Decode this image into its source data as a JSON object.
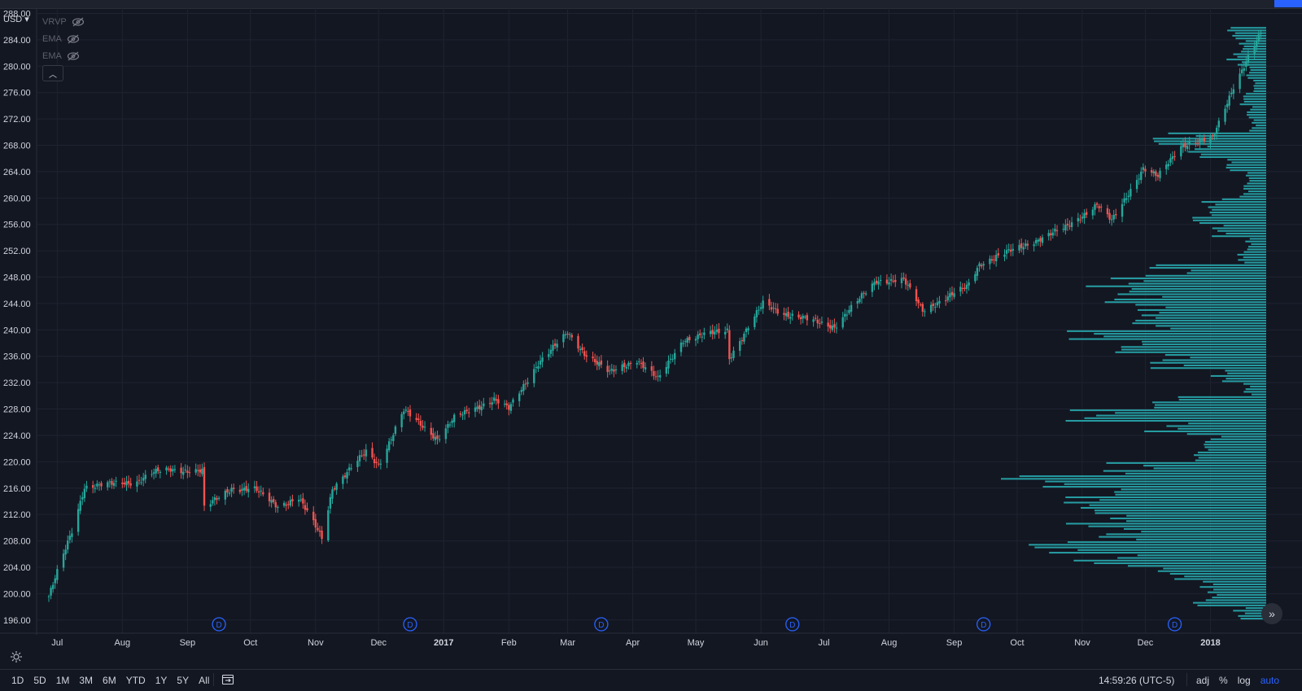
{
  "currency": "USD",
  "legend": [
    "VRVP",
    "EMA",
    "EMA"
  ],
  "bottom_bar": {
    "ranges": [
      "1D",
      "5D",
      "1M",
      "3M",
      "6M",
      "YTD",
      "1Y",
      "5Y",
      "All"
    ],
    "clock": "14:59:26 (UTC-5)",
    "options": [
      "adj",
      "%",
      "log",
      "auto"
    ],
    "active_option": "auto"
  },
  "colors": {
    "background": "#131722",
    "up": "#26a69a",
    "down": "#ef5350",
    "volume_profile": "#26a3a9",
    "dividend_marker": "#2962ff"
  },
  "chart_data": {
    "type": "candlestick",
    "title": "",
    "price_axis": {
      "ylim": [
        194.0,
        288.8
      ],
      "ticks": [
        "196.00",
        "200.00",
        "204.00",
        "208.00",
        "212.00",
        "216.00",
        "220.00",
        "224.00",
        "228.00",
        "232.00",
        "236.00",
        "240.00",
        "244.00",
        "248.00",
        "252.00",
        "256.00",
        "260.00",
        "264.00",
        "268.00",
        "272.00",
        "276.00",
        "280.00",
        "284.00",
        "288.00"
      ]
    },
    "time_axis": {
      "range": [
        "2016-06-27",
        "2018-01-26"
      ],
      "ticks": [
        {
          "label": "Jul",
          "date": "2016-07-01"
        },
        {
          "label": "Aug",
          "date": "2016-08-01"
        },
        {
          "label": "Sep",
          "date": "2016-09-01"
        },
        {
          "label": "Oct",
          "date": "2016-10-01"
        },
        {
          "label": "Nov",
          "date": "2016-11-01"
        },
        {
          "label": "Dec",
          "date": "2016-12-01"
        },
        {
          "label": "2017",
          "date": "2017-01-01",
          "bold": true
        },
        {
          "label": "Feb",
          "date": "2017-02-01"
        },
        {
          "label": "Mar",
          "date": "2017-03-01"
        },
        {
          "label": "Apr",
          "date": "2017-04-01"
        },
        {
          "label": "May",
          "date": "2017-05-01"
        },
        {
          "label": "Jun",
          "date": "2017-06-01"
        },
        {
          "label": "Jul",
          "date": "2017-07-01"
        },
        {
          "label": "Aug",
          "date": "2017-08-01"
        },
        {
          "label": "Sep",
          "date": "2017-09-01"
        },
        {
          "label": "Oct",
          "date": "2017-10-01"
        },
        {
          "label": "Nov",
          "date": "2017-11-01"
        },
        {
          "label": "Dec",
          "date": "2017-12-01"
        },
        {
          "label": "2018",
          "date": "2018-01-01",
          "bold": true
        }
      ]
    },
    "grid": true,
    "dividend_markers": [
      {
        "label": "D",
        "date": "2016-09-16"
      },
      {
        "label": "D",
        "date": "2016-12-16"
      },
      {
        "label": "D",
        "date": "2017-03-17"
      },
      {
        "label": "D",
        "date": "2017-06-16"
      },
      {
        "label": "D",
        "date": "2017-09-15"
      },
      {
        "label": "D",
        "date": "2017-12-15"
      }
    ],
    "close_path": [
      {
        "date": "2016-06-27",
        "close": 199.6
      },
      {
        "date": "2016-07-08",
        "close": 209.5
      },
      {
        "date": "2016-07-14",
        "close": 216.2
      },
      {
        "date": "2016-08-08",
        "close": 217.0
      },
      {
        "date": "2016-08-15",
        "close": 218.3
      },
      {
        "date": "2016-08-24",
        "close": 218.8
      },
      {
        "date": "2016-09-08",
        "close": 218.6
      },
      {
        "date": "2016-09-09",
        "close": 213.0
      },
      {
        "date": "2016-09-22",
        "close": 216.0
      },
      {
        "date": "2016-10-03",
        "close": 215.8
      },
      {
        "date": "2016-10-14",
        "close": 213.3
      },
      {
        "date": "2016-10-24",
        "close": 214.5
      },
      {
        "date": "2016-11-04",
        "close": 208.5
      },
      {
        "date": "2016-11-09",
        "close": 216.0
      },
      {
        "date": "2016-11-25",
        "close": 221.5
      },
      {
        "date": "2016-12-01",
        "close": 219.5
      },
      {
        "date": "2016-12-13",
        "close": 227.8
      },
      {
        "date": "2016-12-29",
        "close": 223.5
      },
      {
        "date": "2017-01-06",
        "close": 226.6
      },
      {
        "date": "2017-01-25",
        "close": 229.5
      },
      {
        "date": "2017-02-01",
        "close": 228.0
      },
      {
        "date": "2017-02-15",
        "close": 235.0
      },
      {
        "date": "2017-03-01",
        "close": 239.5
      },
      {
        "date": "2017-03-09",
        "close": 236.5
      },
      {
        "date": "2017-03-21",
        "close": 233.5
      },
      {
        "date": "2017-04-03",
        "close": 235.5
      },
      {
        "date": "2017-04-13",
        "close": 232.5
      },
      {
        "date": "2017-04-25",
        "close": 238.5
      },
      {
        "date": "2017-05-16",
        "close": 240.0
      },
      {
        "date": "2017-05-17",
        "close": 235.8
      },
      {
        "date": "2017-06-02",
        "close": 244.0
      },
      {
        "date": "2017-06-12",
        "close": 242.5
      },
      {
        "date": "2017-07-06",
        "close": 240.5
      },
      {
        "date": "2017-07-26",
        "close": 247.5
      },
      {
        "date": "2017-08-08",
        "close": 247.5
      },
      {
        "date": "2017-08-17",
        "close": 243.0
      },
      {
        "date": "2017-09-07",
        "close": 246.5
      },
      {
        "date": "2017-09-13",
        "close": 250.0
      },
      {
        "date": "2017-10-02",
        "close": 252.5
      },
      {
        "date": "2017-10-24",
        "close": 255.5
      },
      {
        "date": "2017-11-08",
        "close": 259.0
      },
      {
        "date": "2017-11-15",
        "close": 256.5
      },
      {
        "date": "2017-11-30",
        "close": 264.5
      },
      {
        "date": "2017-12-07",
        "close": 263.2
      },
      {
        "date": "2017-12-18",
        "close": 268.0
      },
      {
        "date": "2018-01-02",
        "close": 269.0
      },
      {
        "date": "2018-01-12",
        "close": 277.0
      },
      {
        "date": "2018-01-26",
        "close": 285.5
      }
    ],
    "volume_profile": {
      "side": "right",
      "bins": [
        {
          "price": 196.0,
          "volume": 0.06
        },
        {
          "price": 198.0,
          "volume": 0.13
        },
        {
          "price": 200.0,
          "volume": 0.12
        },
        {
          "price": 202.0,
          "volume": 0.22
        },
        {
          "price": 204.0,
          "volume": 0.34
        },
        {
          "price": 206.0,
          "volume": 0.42
        },
        {
          "price": 208.0,
          "volume": 0.32
        },
        {
          "price": 210.0,
          "volume": 0.38
        },
        {
          "price": 212.0,
          "volume": 0.45
        },
        {
          "price": 214.0,
          "volume": 0.42
        },
        {
          "price": 216.0,
          "volume": 0.58
        },
        {
          "price": 218.0,
          "volume": 0.32
        },
        {
          "price": 220.0,
          "volume": 0.16
        },
        {
          "price": 222.0,
          "volume": 0.12
        },
        {
          "price": 224.0,
          "volume": 0.22
        },
        {
          "price": 226.0,
          "volume": 0.36
        },
        {
          "price": 228.0,
          "volume": 0.25
        },
        {
          "price": 230.0,
          "volume": 0.04
        },
        {
          "price": 232.0,
          "volume": 0.1
        },
        {
          "price": 234.0,
          "volume": 0.22
        },
        {
          "price": 236.0,
          "volume": 0.28
        },
        {
          "price": 238.0,
          "volume": 0.36
        },
        {
          "price": 240.0,
          "volume": 0.24
        },
        {
          "price": 242.0,
          "volume": 0.28
        },
        {
          "price": 244.0,
          "volume": 0.3
        },
        {
          "price": 246.0,
          "volume": 0.32
        },
        {
          "price": 248.0,
          "volume": 0.22
        },
        {
          "price": 250.0,
          "volume": 0.06
        },
        {
          "price": 252.0,
          "volume": 0.04
        },
        {
          "price": 254.0,
          "volume": 0.1
        },
        {
          "price": 256.0,
          "volume": 0.14
        },
        {
          "price": 258.0,
          "volume": 0.12
        },
        {
          "price": 260.0,
          "volume": 0.05
        },
        {
          "price": 262.0,
          "volume": 0.04
        },
        {
          "price": 264.0,
          "volume": 0.08
        },
        {
          "price": 266.0,
          "volume": 0.14
        },
        {
          "price": 268.0,
          "volume": 0.2
        },
        {
          "price": 270.0,
          "volume": 0.03
        },
        {
          "price": 272.0,
          "volume": 0.04
        },
        {
          "price": 274.0,
          "volume": 0.05
        },
        {
          "price": 276.0,
          "volume": 0.03
        },
        {
          "price": 278.0,
          "volume": 0.04
        },
        {
          "price": 280.0,
          "volume": 0.07
        },
        {
          "price": 282.0,
          "volume": 0.05
        },
        {
          "price": 284.0,
          "volume": 0.07
        }
      ]
    }
  }
}
